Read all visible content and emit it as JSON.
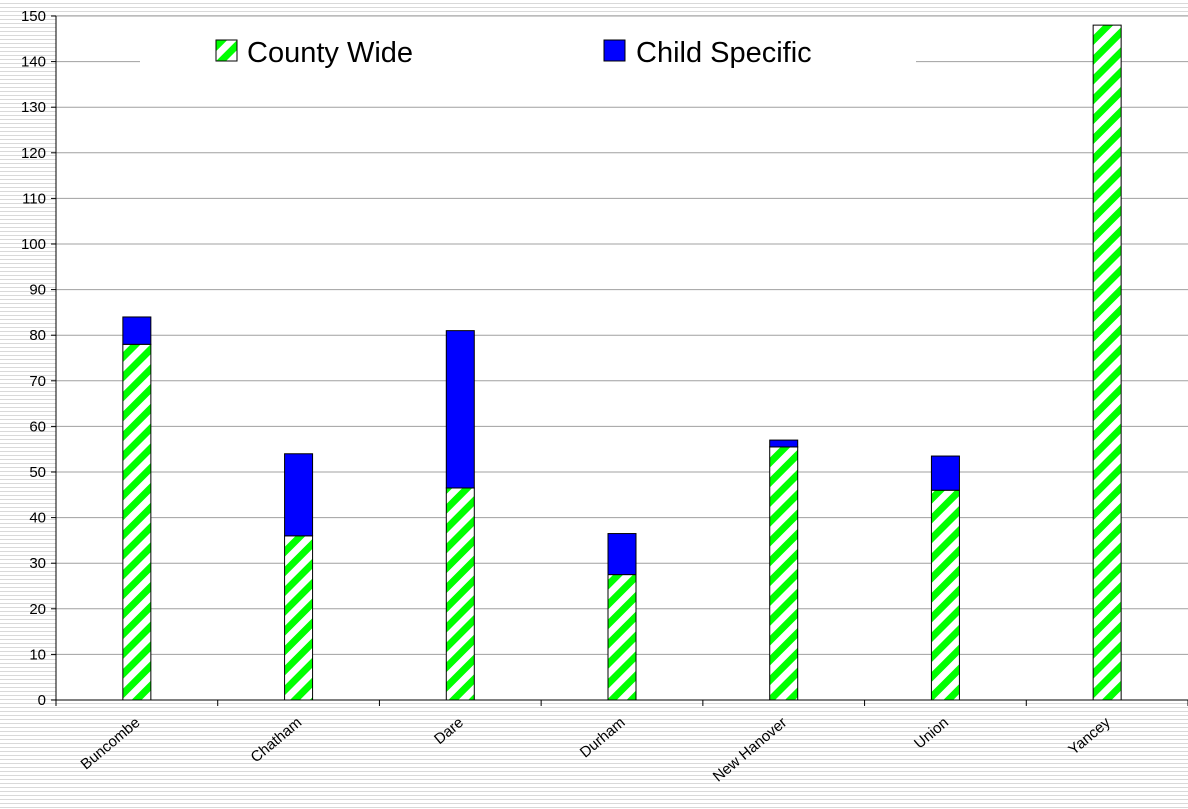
{
  "chart_data": {
    "type": "bar",
    "stacked": true,
    "categories": [
      "Buncombe",
      "Chatham",
      "Dare",
      "Durham",
      "New Hanover",
      "Union",
      "Yancey"
    ],
    "series": [
      {
        "name": "County Wide",
        "values": [
          78,
          36,
          46.5,
          27.5,
          55.5,
          46,
          148
        ],
        "pattern": "green-white diagonal stripes"
      },
      {
        "name": "Child Specific",
        "values": [
          6,
          18,
          34.5,
          9,
          1.5,
          7.5,
          0
        ],
        "color": "#0000ff"
      }
    ],
    "ylim": [
      0,
      150
    ],
    "yticks": [
      0,
      10,
      20,
      30,
      40,
      50,
      60,
      70,
      80,
      90,
      100,
      110,
      120,
      130,
      140,
      150
    ],
    "grid": true,
    "legend": "top",
    "title": "",
    "xlabel": "",
    "ylabel": ""
  },
  "colors": {
    "stripe_green": "#00ff00",
    "child_blue": "#0000ff",
    "gridline": "#a0a0a0"
  }
}
